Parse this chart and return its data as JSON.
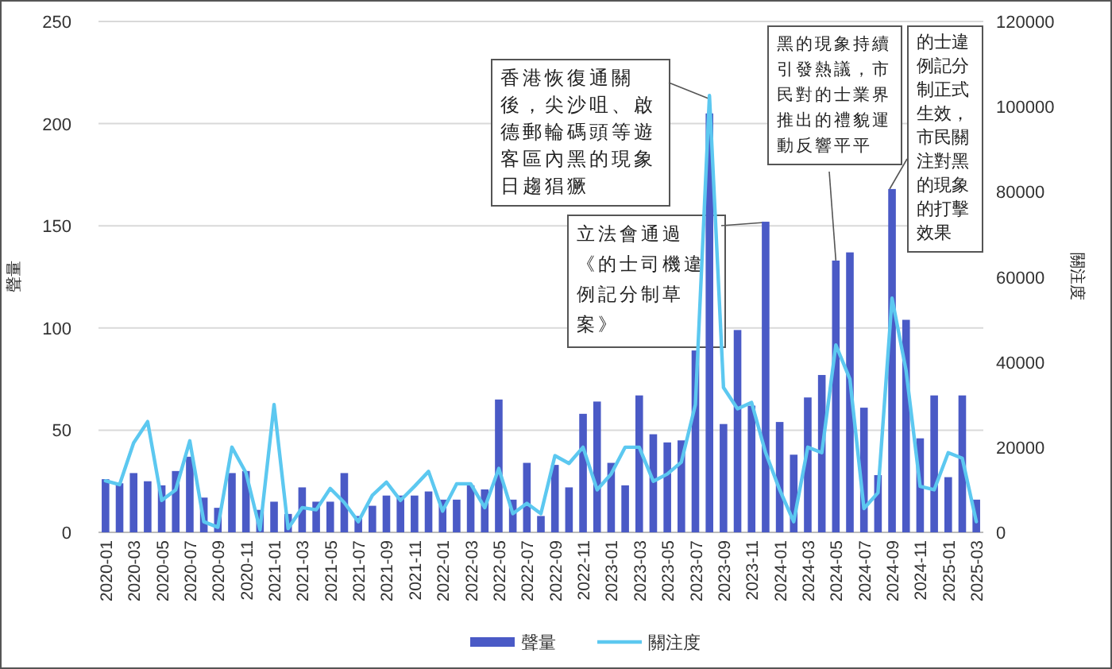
{
  "chart_data": {
    "type": "bar",
    "ylabel": "聲量",
    "y2label": "關注度",
    "ylim": [
      0,
      250
    ],
    "yticks": [
      0,
      50,
      100,
      150,
      200,
      250
    ],
    "y2lim": [
      0,
      120000
    ],
    "y2ticks": [
      0,
      20000,
      40000,
      60000,
      80000,
      100000,
      120000
    ],
    "grid": "y",
    "legend": "bottom",
    "categories": [
      "2020-01",
      null,
      "2020-03",
      null,
      "2020-05",
      null,
      "2020-07",
      null,
      "2020-09",
      null,
      "2020-11",
      null,
      "2021-01",
      null,
      "2021-03",
      null,
      "2021-05",
      null,
      "2021-07",
      null,
      "2021-09",
      null,
      "2021-11",
      null,
      "2022-01",
      null,
      "2022-03",
      null,
      "2022-05",
      null,
      "2022-07",
      null,
      "2022-09",
      null,
      "2022-11",
      null,
      "2023-01",
      null,
      "2023-03",
      null,
      "2023-05",
      null,
      "2023-07",
      null,
      "2023-09",
      null,
      "2023-11",
      null,
      "2024-01",
      null,
      "2024-03",
      null,
      "2024-05",
      null,
      "2024-07",
      null,
      "2024-09",
      null,
      "2024-11",
      null,
      "2025-01",
      null,
      "2025-03"
    ],
    "series": [
      {
        "name": "聲量",
        "color": "#4a5ac6",
        "values": [
          26,
          24,
          29,
          25,
          23,
          30,
          37,
          17,
          12,
          29,
          30,
          11,
          15,
          9,
          22,
          15,
          15,
          29,
          8,
          13,
          18,
          18,
          18,
          20,
          16,
          16,
          23,
          21,
          65,
          16,
          34,
          8,
          33,
          22,
          58,
          64,
          34,
          23,
          67,
          48,
          44,
          45,
          89,
          205,
          53,
          99,
          62,
          152,
          54,
          38,
          66,
          77,
          133,
          137,
          61,
          28,
          168,
          104,
          46,
          67,
          27,
          67,
          16
        ]
      },
      {
        "name": "關注度",
        "type": "line",
        "axis": "y2",
        "color": "#5cc8f0",
        "values": [
          12100,
          11200,
          21000,
          26000,
          7500,
          10000,
          21500,
          2500,
          1200,
          20000,
          14000,
          600,
          30000,
          900,
          5800,
          5300,
          10300,
          7000,
          2500,
          8700,
          11800,
          7500,
          10800,
          14300,
          5000,
          11400,
          11400,
          5800,
          15000,
          4400,
          6800,
          4400,
          18000,
          16200,
          20000,
          10000,
          13700,
          20000,
          20000,
          12000,
          13700,
          16500,
          30000,
          102600,
          34000,
          29000,
          30500,
          18700,
          10000,
          2500,
          20000,
          18700,
          44000,
          36000,
          5600,
          9300,
          55000,
          38000,
          10800,
          10000,
          18700,
          17400,
          2500
        ]
      }
    ],
    "annotations": [
      "香港恢復通關後，尖沙咀、啟德郵輪碼頭等遊客區內黑的現象日趨猖獗",
      "立法會通過《的士司機違例記分制草案》",
      {
        "text": "黑的現象持續引發熱議，市民對的士業界推出的禮貌運動反響平平",
        "x": "2024-05",
        "y": 133
      },
      "的士違例記分制正式生效，市民關注對黑的現象的打擊效果"
    ]
  }
}
